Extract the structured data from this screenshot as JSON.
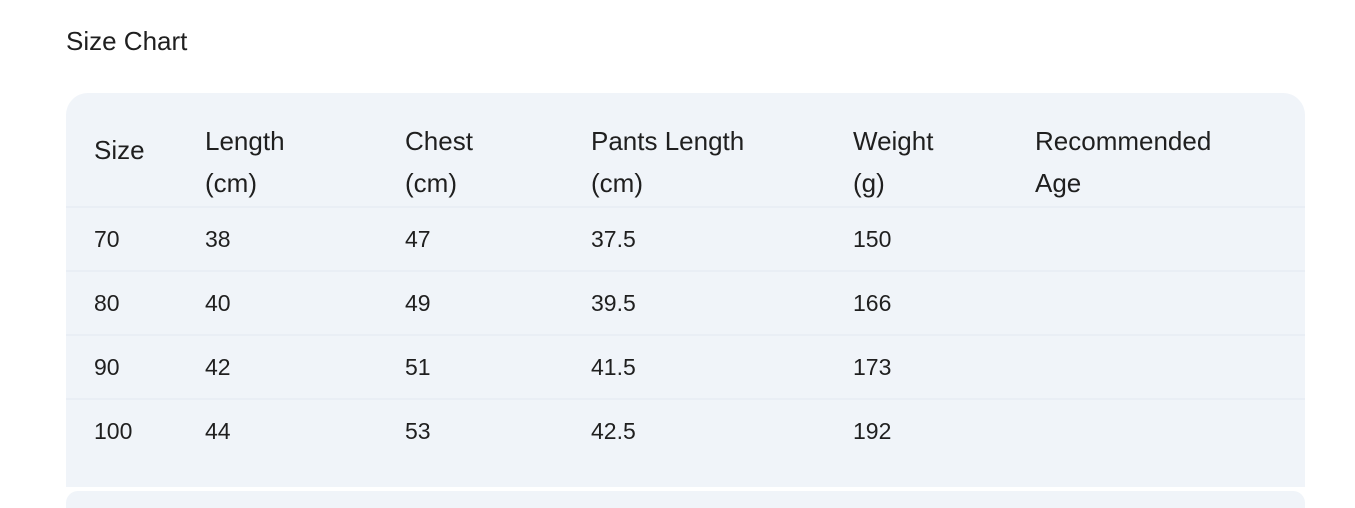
{
  "title": "Size Chart",
  "table": {
    "headers": [
      {
        "line1": "Size",
        "line2": ""
      },
      {
        "line1": "Length",
        "line2": "(cm)"
      },
      {
        "line1": "Chest",
        "line2": "(cm)"
      },
      {
        "line1": "Pants Length",
        "line2": "(cm)"
      },
      {
        "line1": "Weight",
        "line2": "(g)"
      },
      {
        "line1": "Recommended",
        "line2": "Age"
      }
    ],
    "rows": [
      [
        "70",
        "38",
        "47",
        "37.5",
        "150",
        ""
      ],
      [
        "80",
        "40",
        "49",
        "39.5",
        "166",
        ""
      ],
      [
        "90",
        "42",
        "51",
        "41.5",
        "173",
        ""
      ],
      [
        "100",
        "44",
        "53",
        "42.5",
        "192",
        ""
      ]
    ]
  },
  "colors": {
    "card_background": "#f0f4f9",
    "text": "#1f1f1f"
  }
}
